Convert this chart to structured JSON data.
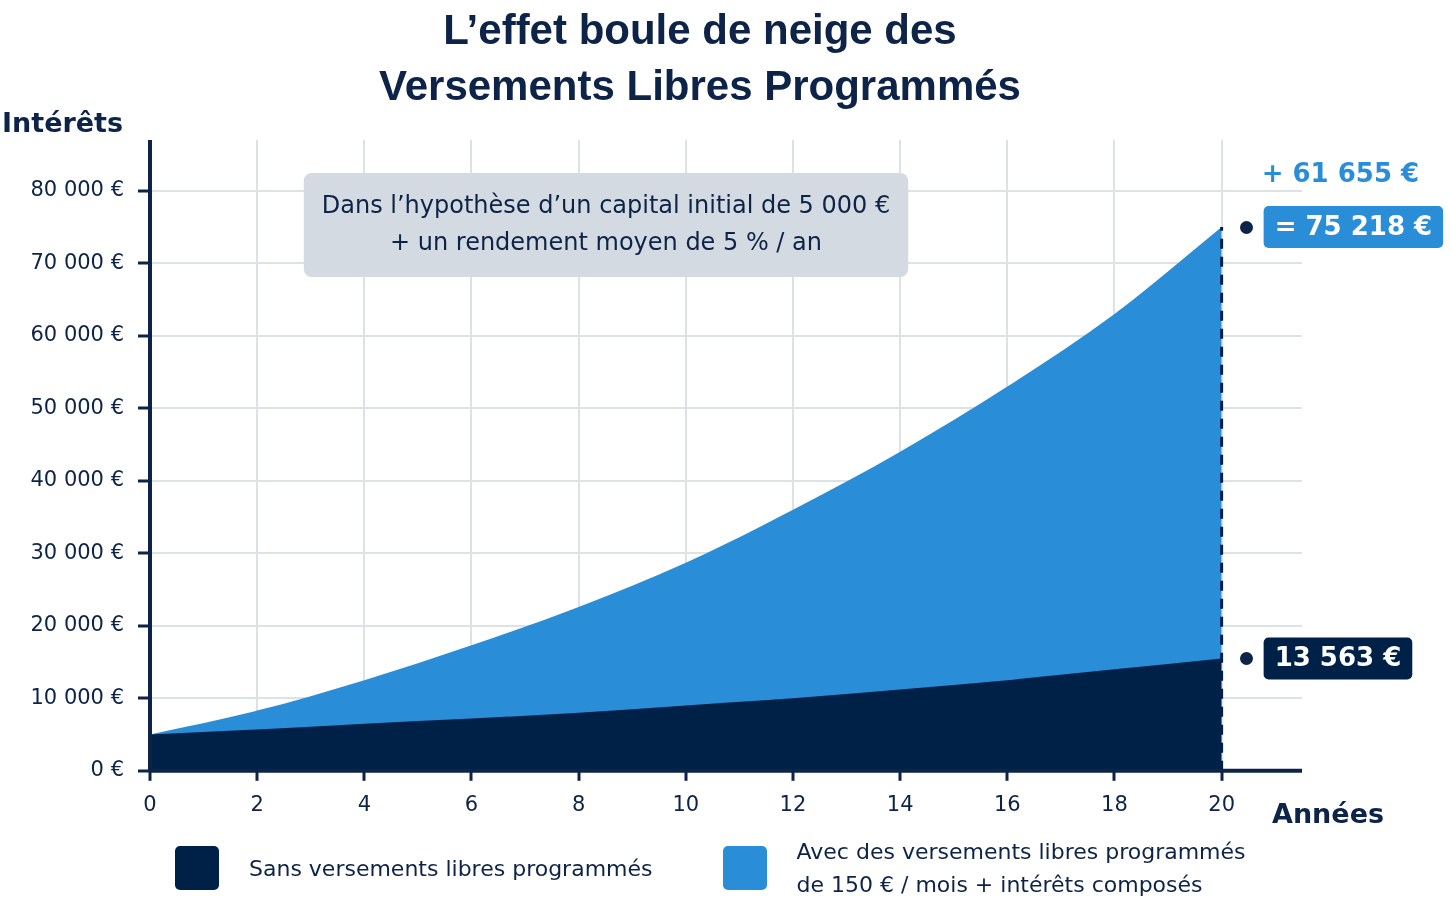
{
  "chart_data": {
    "type": "area",
    "title": "L’effet boule de neige des Versements Libres Programmés",
    "xlabel": "Années",
    "ylabel": "Intérêts",
    "x": [
      0,
      2,
      4,
      6,
      8,
      10,
      12,
      14,
      16,
      18,
      20
    ],
    "series": [
      {
        "name": "Sans versements libres programmés",
        "color": "#002147",
        "values": [
          5000,
          5700,
          6500,
          7200,
          8000,
          9000,
          10000,
          11200,
          12500,
          14000,
          15500
        ]
      },
      {
        "name": "Avec des versements libres programmés de 150 € / mois + intérêts composés",
        "color": "#2a8dd8",
        "values": [
          5000,
          8300,
          12500,
          17300,
          22600,
          28700,
          36000,
          44000,
          53000,
          63000,
          75000
        ]
      }
    ],
    "xlim": [
      0,
      21.5
    ],
    "xticks": [
      0,
      2,
      4,
      6,
      8,
      10,
      12,
      14,
      16,
      18,
      20
    ],
    "ylim": [
      0,
      87000
    ],
    "yticks": [
      {
        "value": 0,
        "label": "0 €"
      },
      {
        "value": 10000,
        "label": "10 000 €"
      },
      {
        "value": 20000,
        "label": "20 000 €"
      },
      {
        "value": 30000,
        "label": "30 000 €"
      },
      {
        "value": 40000,
        "label": "40 000 €"
      },
      {
        "value": 50000,
        "label": "50 000 €"
      },
      {
        "value": 60000,
        "label": "60 000 €"
      },
      {
        "value": 70000,
        "label": "70 000 €"
      },
      {
        "value": 80000,
        "label": "80 000 €"
      }
    ],
    "grid": true,
    "legend": "bottom",
    "ref_lines": [
      {
        "axis": "x",
        "value": 20,
        "line_style": "dashed",
        "color": "#002147"
      }
    ],
    "annotations": [
      "Dans l’hypothèse d’un capital initial de 5 000 € + un rendement moyen de 5 % / an",
      "+ 61 655 €",
      "= 75 218 €",
      "13 563 €"
    ]
  }
}
